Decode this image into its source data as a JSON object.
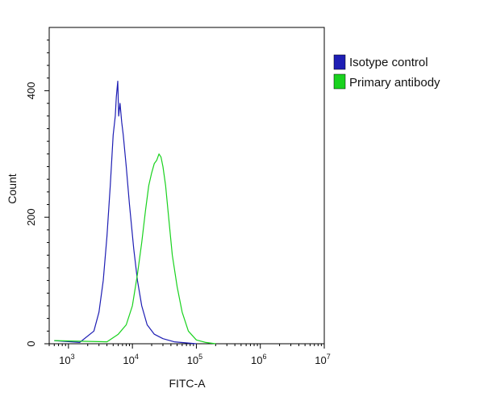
{
  "chart_data": {
    "type": "line",
    "title": "",
    "xlabel": "FITC-A",
    "ylabel": "Count",
    "x_scale": "log",
    "xlim": [
      500,
      10000000
    ],
    "ylim": [
      0,
      500
    ],
    "x_ticks": [
      {
        "value": 1000,
        "base": "10",
        "exp": "3"
      },
      {
        "value": 10000,
        "base": "10",
        "exp": "4"
      },
      {
        "value": 100000,
        "base": "10",
        "exp": "5"
      },
      {
        "value": 1000000,
        "base": "10",
        "exp": "6"
      },
      {
        "value": 10000000,
        "base": "10",
        "exp": "7"
      }
    ],
    "y_ticks": [
      {
        "value": 0,
        "label": "0"
      },
      {
        "value": 200,
        "label": "200"
      },
      {
        "value": 400,
        "label": "400"
      }
    ],
    "grid": false,
    "legend_position": "top-right",
    "series": [
      {
        "name": "Isotype control",
        "color": "#1e1eb4",
        "x": [
          600,
          1500,
          2500,
          3000,
          3500,
          4000,
          4500,
          5000,
          5400,
          5600,
          5900,
          6100,
          6400,
          6800,
          7200,
          8000,
          9000,
          10500,
          12000,
          14000,
          17000,
          22000,
          30000,
          45000,
          100000
        ],
        "y": [
          5,
          2,
          20,
          50,
          100,
          170,
          250,
          330,
          360,
          390,
          415,
          360,
          380,
          350,
          330,
          280,
          220,
          150,
          100,
          60,
          30,
          15,
          8,
          3,
          0
        ]
      },
      {
        "name": "Primary antibody",
        "color": "#19d21e",
        "x": [
          600,
          4000,
          6000,
          8000,
          10000,
          12000,
          14000,
          16000,
          18000,
          20000,
          22000,
          24000,
          26000,
          28000,
          30000,
          33000,
          36000,
          42000,
          50000,
          60000,
          75000,
          100000,
          140000,
          200000
        ],
        "y": [
          5,
          3,
          15,
          30,
          60,
          110,
          160,
          210,
          250,
          270,
          285,
          290,
          300,
          295,
          280,
          250,
          210,
          140,
          90,
          50,
          20,
          6,
          2,
          0
        ]
      }
    ]
  }
}
